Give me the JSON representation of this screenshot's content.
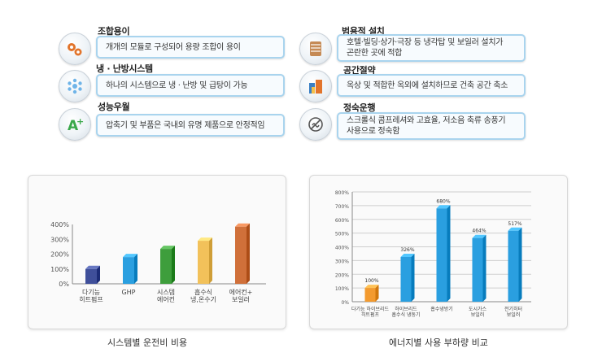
{
  "features": [
    {
      "title": "조합용이",
      "text": "개개의 모듈로 구성되어 용량 조합이 용이",
      "icon": "gears-icon"
    },
    {
      "title": "범용적 설치",
      "text": "호텔·빌딩·상가·극장 등 냉각탑 및 보일러 설치가\n곤란한 곳에 적합",
      "icon": "tube-coil-icon"
    },
    {
      "title": "냉 · 난방시스템",
      "text": "하나의 시스템으로 냉 · 난방 및 급탕이 가능",
      "icon": "snowflake-icon"
    },
    {
      "title": "공간절약",
      "text": "옥상 및 적합한 옥외에 설치하므로 건축 공간 축소",
      "icon": "building-icon"
    },
    {
      "title": "성능우월",
      "text": "압축기 및 부품은 국내외 유명 제품으로 안정적임",
      "icon": "a-plus-icon"
    },
    {
      "title": "정숙운행",
      "text": "스크롤식 콤프레셔와 고효율, 저소음 축류 송풍기\n사용으로 정숙함",
      "icon": "quiet-icon"
    }
  ],
  "chart1": {
    "caption": "시스템별 운전비 비용",
    "chart_data": {
      "type": "bar",
      "categories": [
        "다기능\n히트펌프",
        "GHP",
        "시스템\n에어컨",
        "흡수식\n냉,온수기",
        "에어컨+\n보일러"
      ],
      "values": [
        100,
        180,
        235,
        290,
        385
      ],
      "yticks": [
        "0%",
        "100%",
        "200%",
        "300%",
        "400%"
      ],
      "ylim": [
        0,
        400
      ],
      "colors": [
        "#3f4f9a",
        "#2a9fe0",
        "#3e9e3c",
        "#f2c15a",
        "#d0703a"
      ]
    }
  },
  "chart2": {
    "caption": "에너지별 사용 부하량 비교",
    "chart_data": {
      "type": "bar",
      "categories": [
        "다기능 하이브리드\n히트펌프",
        "하이브리드\n흡수식 냉동기",
        "흡수냉방기",
        "도시가스\n보일러",
        "전기히터\n보일러"
      ],
      "values": [
        100,
        326,
        680,
        464,
        517
      ],
      "value_labels": [
        "100%",
        "326%",
        "680%",
        "464%",
        "517%"
      ],
      "yticks": [
        "0%",
        "100%",
        "200%",
        "300%",
        "400%",
        "500%",
        "600%",
        "700%",
        "800%"
      ],
      "ylim": [
        0,
        800
      ],
      "colors": [
        "#f39a2e",
        "#2a9fe0",
        "#2a9fe0",
        "#2a9fe0",
        "#2a9fe0"
      ]
    }
  }
}
